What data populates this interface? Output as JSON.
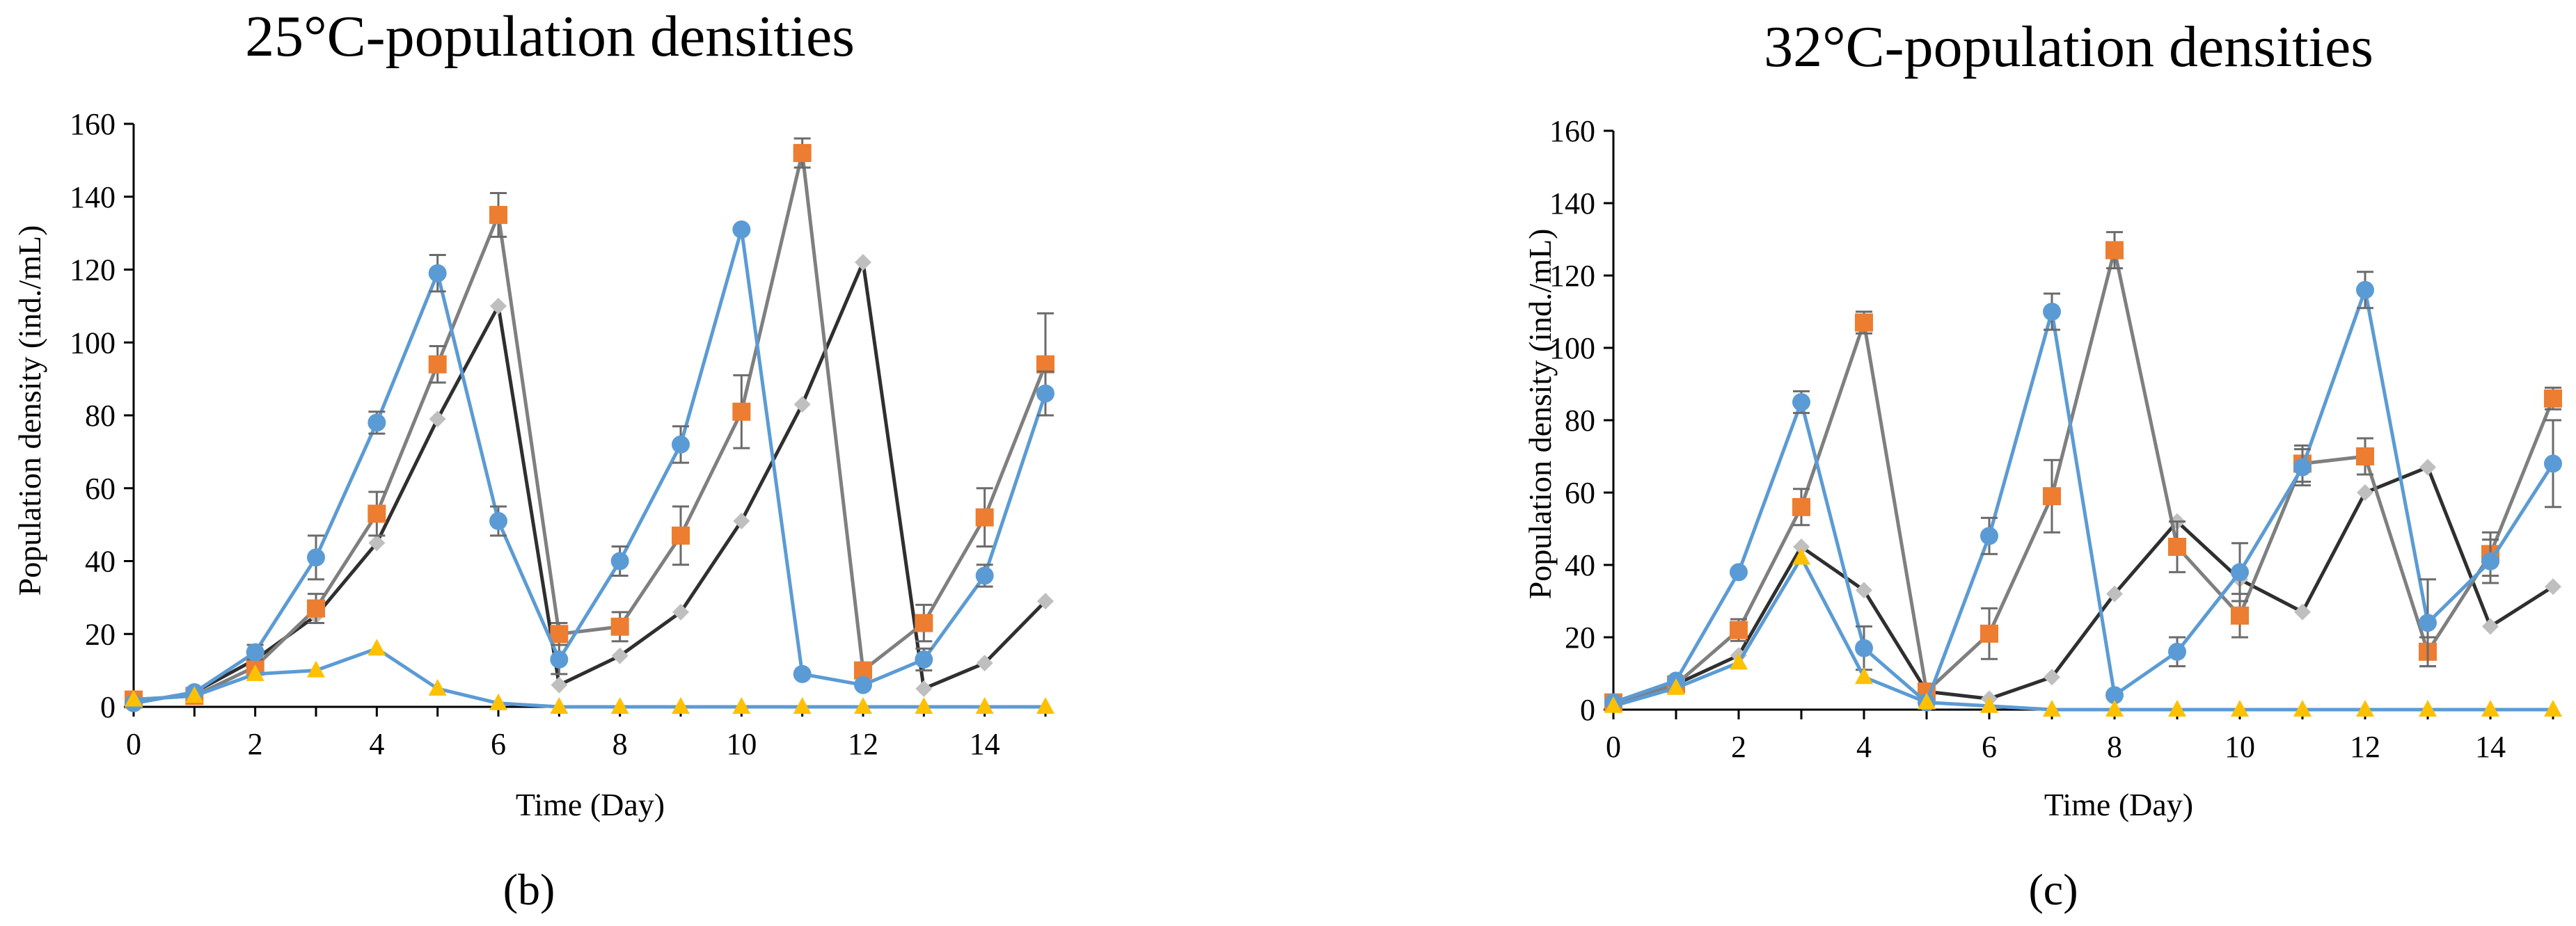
{
  "chart_data": [
    {
      "type": "line",
      "title": "25°C-population densities",
      "panel_label": "(b)",
      "xlabel": "Time (Day)",
      "ylabel": "Population density (ind./mL)",
      "xlim": [
        0,
        15
      ],
      "ylim": [
        0,
        160
      ],
      "xticks": [
        0,
        2,
        4,
        6,
        8,
        10,
        12,
        14
      ],
      "yticks": [
        0,
        20,
        40,
        60,
        80,
        100,
        120,
        140,
        160
      ],
      "grid": false,
      "x": [
        0,
        1,
        2,
        3,
        4,
        5,
        6,
        7,
        8,
        9,
        10,
        11,
        12,
        13,
        14,
        15
      ],
      "series": [
        {
          "name": "dark-gray",
          "color": "#2f2f2f",
          "marker": "diamond",
          "marker_color": "#bfbfbf",
          "values": [
            1,
            4,
            13,
            25,
            45,
            79,
            110,
            6,
            14,
            26,
            51,
            83,
            122,
            5,
            12,
            29
          ],
          "errors": [
            0,
            0,
            0,
            0,
            0,
            0,
            0,
            0,
            0,
            0,
            0,
            0,
            0,
            0,
            0,
            0
          ]
        },
        {
          "name": "gray",
          "color": "#7f7f7f",
          "marker": "square",
          "marker_color": "#ed7d31",
          "values": [
            2,
            3,
            11,
            27,
            53,
            94,
            135,
            20,
            22,
            47,
            81,
            152,
            10,
            23,
            52,
            94
          ],
          "errors": [
            0,
            0,
            2,
            4,
            6,
            5,
            6,
            3,
            4,
            8,
            10,
            4,
            0,
            5,
            8,
            14
          ]
        },
        {
          "name": "blue",
          "color": "#5b9bd5",
          "marker": "circle",
          "marker_color": "#5b9bd5",
          "values": [
            1,
            4,
            15,
            41,
            78,
            119,
            51,
            13,
            40,
            72,
            131,
            9,
            6,
            13,
            36,
            86
          ],
          "errors": [
            0,
            0,
            2,
            6,
            3,
            5,
            4,
            4,
            4,
            5,
            0,
            0,
            0,
            3,
            3,
            6
          ]
        },
        {
          "name": "yellow",
          "color": "#5b9bd5",
          "marker": "triangle",
          "marker_color": "#ffc000",
          "values": [
            2,
            3,
            9,
            10,
            16,
            5,
            1,
            0,
            0,
            0,
            0,
            0,
            0,
            0,
            0,
            0
          ],
          "errors": [
            0,
            0,
            0,
            0,
            0,
            0,
            0,
            0,
            0,
            0,
            0,
            0,
            0,
            0,
            0,
            0
          ]
        }
      ]
    },
    {
      "type": "line",
      "title": "32°C-population densities",
      "panel_label": "(c)",
      "xlabel": "Time (Day)",
      "ylabel": "Population density (ind./mL)",
      "xlim": [
        0,
        15
      ],
      "ylim": [
        0,
        160
      ],
      "xticks": [
        0,
        2,
        4,
        6,
        8,
        10,
        12,
        14
      ],
      "yticks": [
        0,
        20,
        40,
        60,
        80,
        100,
        120,
        140,
        160
      ],
      "grid": false,
      "x": [
        0,
        1,
        2,
        3,
        4,
        5,
        6,
        7,
        8,
        9,
        10,
        11,
        12,
        13,
        14,
        15
      ],
      "series": [
        {
          "name": "dark-gray",
          "color": "#2f2f2f",
          "marker": "diamond",
          "marker_color": "#bfbfbf",
          "values": [
            2,
            7,
            15,
            45,
            33,
            5,
            3,
            9,
            32,
            52,
            36,
            27,
            60,
            67,
            23,
            34
          ],
          "errors": [
            0,
            0,
            0,
            0,
            0,
            0,
            0,
            0,
            0,
            0,
            0,
            0,
            0,
            0,
            0,
            0
          ]
        },
        {
          "name": "gray",
          "color": "#7f7f7f",
          "marker": "square",
          "marker_color": "#ed7d31",
          "values": [
            2,
            7,
            22,
            56,
            107,
            5,
            21,
            59,
            127,
            45,
            26,
            68,
            70,
            16,
            43,
            86
          ],
          "errors": [
            0,
            0,
            3,
            5,
            3,
            0,
            7,
            10,
            5,
            7,
            6,
            5,
            5,
            4,
            6,
            3
          ]
        },
        {
          "name": "blue",
          "color": "#5b9bd5",
          "marker": "circle",
          "marker_color": "#5b9bd5",
          "values": [
            2,
            8,
            38,
            85,
            17,
            2,
            48,
            110,
            4,
            16,
            38,
            67,
            116,
            24,
            41,
            68
          ],
          "errors": [
            0,
            0,
            0,
            3,
            6,
            0,
            5,
            5,
            0,
            4,
            8,
            5,
            5,
            12,
            6,
            12
          ]
        },
        {
          "name": "yellow",
          "color": "#5b9bd5",
          "marker": "triangle",
          "marker_color": "#ffc000",
          "values": [
            1,
            6,
            13,
            42,
            9,
            2,
            1,
            0,
            0,
            0,
            0,
            0,
            0,
            0,
            0,
            0
          ],
          "errors": [
            0,
            0,
            0,
            0,
            0,
            0,
            0,
            0,
            0,
            0,
            0,
            0,
            0,
            0,
            0,
            0
          ]
        }
      ]
    }
  ]
}
